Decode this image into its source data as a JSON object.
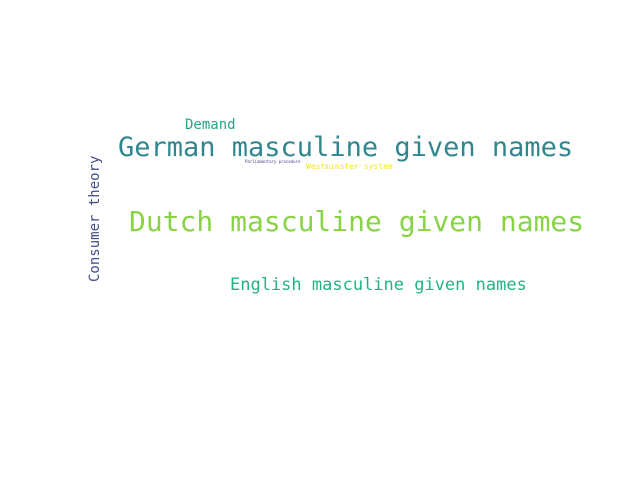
{
  "word_cloud": {
    "words": [
      {
        "text": "German masculine given names",
        "color": "#31878e"
      },
      {
        "text": "Dutch masculine given names",
        "color": "#8ad346"
      },
      {
        "text": "English masculine given names",
        "color": "#25b282"
      },
      {
        "text": "Demand",
        "color": "#22a587"
      },
      {
        "text": "Consumer theory",
        "color": "#434c89"
      },
      {
        "text": "Westminster system",
        "color": "#f5e42a"
      },
      {
        "text": "Parliamentary procedure",
        "color": "#433a84"
      }
    ]
  }
}
